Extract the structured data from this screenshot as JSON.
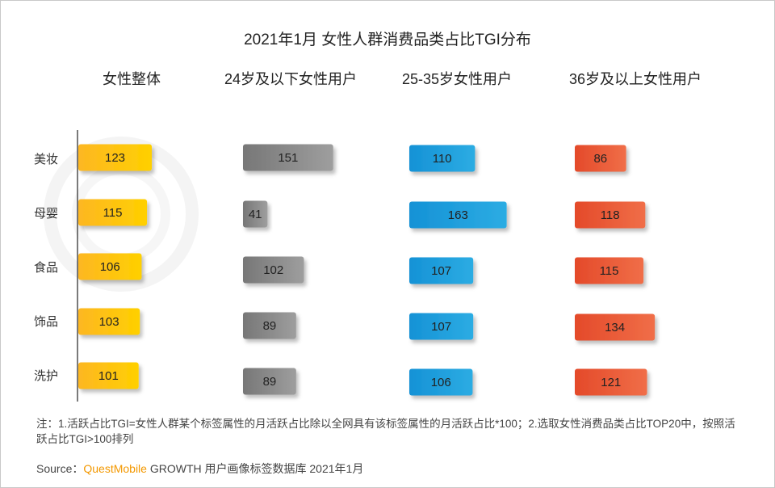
{
  "chart_data": {
    "type": "bar",
    "orientation": "horizontal",
    "title": "2021年1月 女性人群消费品类占比TGI分布",
    "categories": [
      "美妆",
      "母婴",
      "食品",
      "饰品",
      "洗护"
    ],
    "series": [
      {
        "name": "女性整体",
        "values": [
          123,
          115,
          106,
          103,
          101
        ],
        "color": "#ffc414"
      },
      {
        "name": "24岁及以下女性用户",
        "values": [
          151,
          41,
          102,
          89,
          89
        ],
        "color": "#8a8a8a"
      },
      {
        "name": "25-35岁女性用户",
        "values": [
          110,
          163,
          107,
          107,
          106
        ],
        "color": "#1a9ad8"
      },
      {
        "name": "36岁及以上女性用户",
        "values": [
          86,
          118,
          115,
          134,
          121
        ],
        "color": "#e8532d"
      }
    ],
    "data_labels": true,
    "grid": false
  },
  "watermark": "QUESTMOBILE",
  "note": "注：1.活跃占比TGI=女性人群某个标签属性的月活跃占比除以全网具有该标签属性的月活跃占比*100；2.选取女性消费品类占比TOP20中，按照活跃占比TGI>100排列",
  "source": {
    "label": "Source：",
    "brand": "QuestMobile",
    "text": " GROWTH 用户画像标签数据库 2021年1月"
  }
}
